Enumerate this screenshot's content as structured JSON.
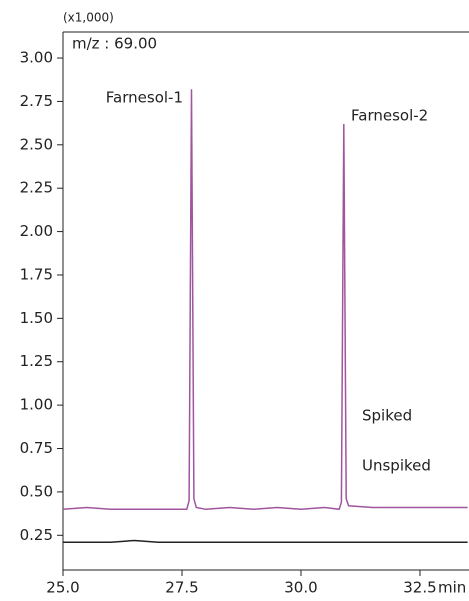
{
  "chart_data": {
    "type": "line",
    "y_multiplier_label": "(x1,000)",
    "x_label": "min",
    "annotations": [
      "m/z : 69.00",
      "Farnesol-1",
      "Farnesol-2"
    ],
    "x": [
      25.0,
      25.5,
      26.0,
      26.5,
      27.0,
      27.5,
      27.6,
      27.65,
      27.7,
      27.75,
      27.8,
      28.0,
      28.5,
      29.0,
      29.5,
      30.0,
      30.5,
      30.8,
      30.85,
      30.9,
      30.95,
      31.0,
      31.5,
      32.0,
      32.5,
      33.0,
      33.5
    ],
    "series": [
      {
        "name": "Spiked",
        "color": "#a0559f",
        "values": [
          0.4,
          0.41,
          0.4,
          0.4,
          0.4,
          0.4,
          0.4,
          0.45,
          2.82,
          0.46,
          0.41,
          0.4,
          0.41,
          0.4,
          0.41,
          0.4,
          0.41,
          0.4,
          0.44,
          2.62,
          0.46,
          0.42,
          0.41,
          0.41,
          0.41,
          0.41,
          0.41
        ]
      },
      {
        "name": "Unspiked",
        "color": "#222222",
        "values": [
          0.21,
          0.21,
          0.21,
          0.22,
          0.21,
          0.21,
          0.21,
          0.21,
          0.21,
          0.21,
          0.21,
          0.21,
          0.21,
          0.21,
          0.21,
          0.21,
          0.21,
          0.21,
          0.21,
          0.21,
          0.21,
          0.21,
          0.21,
          0.21,
          0.21,
          0.21,
          0.21
        ]
      }
    ],
    "xlim": [
      25,
      33.53
    ],
    "ylim": [
      0.05,
      3.15
    ],
    "xticks": [
      {
        "value": 25,
        "label": "25.0"
      },
      {
        "value": 27.5,
        "label": "27.5"
      },
      {
        "value": 30,
        "label": "30.0"
      },
      {
        "value": 32.5,
        "label": "32.5"
      }
    ],
    "yticks": [
      {
        "value": 0.25,
        "label": "0.25"
      },
      {
        "value": 0.5,
        "label": "0.50"
      },
      {
        "value": 0.75,
        "label": "0.75"
      },
      {
        "value": 1,
        "label": "1.00"
      },
      {
        "value": 1.25,
        "label": "1.25"
      },
      {
        "value": 1.5,
        "label": "1.50"
      },
      {
        "value": 1.75,
        "label": "1.75"
      },
      {
        "value": 2,
        "label": "2.00"
      },
      {
        "value": 2.25,
        "label": "2.25"
      },
      {
        "value": 2.5,
        "label": "2.50"
      },
      {
        "value": 2.75,
        "label": "2.75"
      },
      {
        "value": 3,
        "label": "3.00"
      }
    ],
    "grid": false
  }
}
